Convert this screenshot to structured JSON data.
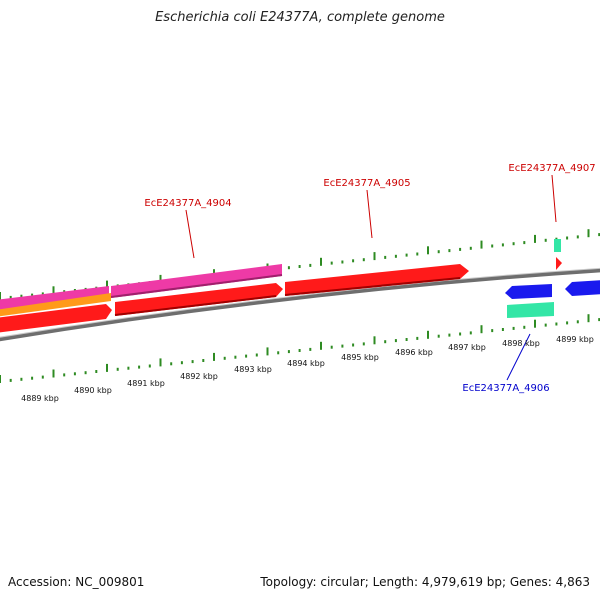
{
  "title": "Escherichia coli E24377A, complete genome",
  "footer": {
    "accession": "Accession: NC_009801",
    "summary": "Topology: circular; Length: 4,979,619 bp; Genes: 4,863"
  },
  "colors": {
    "backbone": "#8a8a8a",
    "tick": "#2e8b22",
    "label_forward": "#cc0000",
    "label_reverse": "#0000cc",
    "red_gene": "#ff1a1a",
    "magenta_gene": "#ee3aa6",
    "orange_gene": "#ff9a1a",
    "blue_gene": "#1a1aee",
    "cyan_gene": "#33e6a6"
  },
  "scale_labels": [
    "4889 kbp",
    "4890 kbp",
    "4891 kbp",
    "4892 kbp",
    "4893 kbp",
    "4894 kbp",
    "4895 kbp",
    "4896 kbp",
    "4897 kbp",
    "4898 kbp",
    "4899 kbp"
  ],
  "gene_labels": [
    {
      "id": "g4904",
      "text": "EcE24377A_4904",
      "strand": "forward"
    },
    {
      "id": "g4905",
      "text": "EcE24377A_4905",
      "strand": "forward"
    },
    {
      "id": "g4907",
      "text": "EcE24377A_4907",
      "strand": "forward"
    },
    {
      "id": "g4906",
      "text": "EcE24377A_4906",
      "strand": "reverse"
    }
  ]
}
